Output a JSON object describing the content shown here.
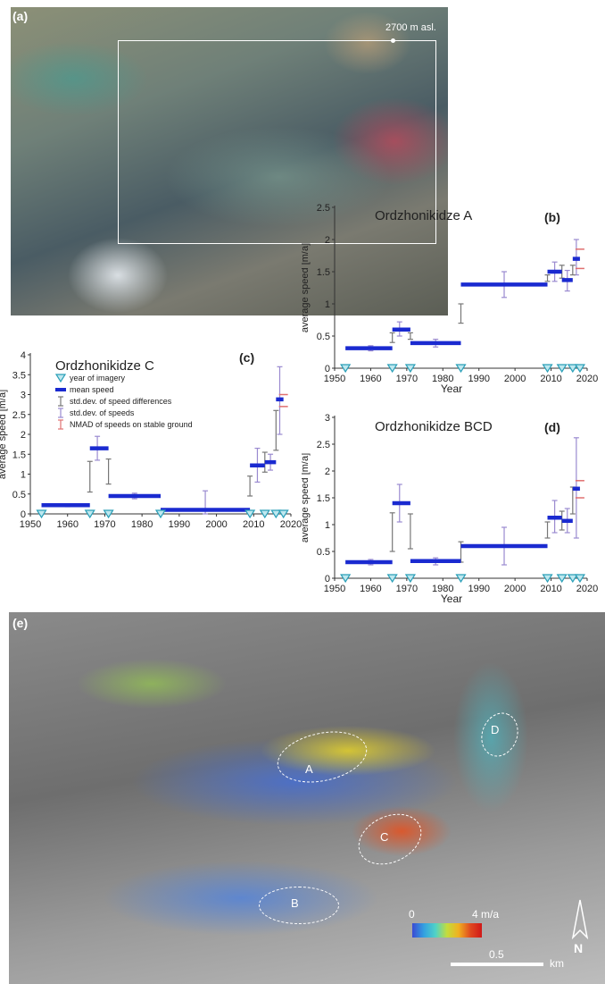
{
  "panel_a": {
    "label": "(a)",
    "altitude": "2700 m asl."
  },
  "panel_e": {
    "label": "(e)",
    "regions": [
      "A",
      "B",
      "C",
      "D"
    ],
    "colorbar": {
      "min": "0",
      "max": "4 m/a"
    },
    "scale": {
      "value": "0.5",
      "unit": "km"
    },
    "north": "N"
  },
  "chart_data": [
    {
      "id": "b",
      "panel": "(b)",
      "type": "line",
      "title": "Ordzhonikidze A",
      "xlabel": "Year",
      "ylabel": "average speed [m/a]",
      "xlim": [
        1950,
        2020
      ],
      "ylim": [
        0,
        2.5
      ],
      "xticks": [
        1950,
        1960,
        1970,
        1980,
        1990,
        2000,
        2010,
        2020
      ],
      "yticks": [
        "0",
        "0.5",
        "1",
        "1.5",
        "2",
        "2.5"
      ],
      "imagery_years": [
        1953,
        1966,
        1971,
        1985,
        2009,
        2013,
        2016,
        2018
      ],
      "mean_speed": [
        {
          "x0": 1953,
          "x1": 1966,
          "v": 0.31
        },
        {
          "x0": 1966,
          "x1": 1971,
          "v": 0.6
        },
        {
          "x0": 1971,
          "x1": 1985,
          "v": 0.39
        },
        {
          "x0": 1985,
          "x1": 2009,
          "v": 1.3
        },
        {
          "x0": 2009,
          "x1": 2013,
          "v": 1.5
        },
        {
          "x0": 2013,
          "x1": 2016,
          "v": 1.37
        },
        {
          "x0": 2016,
          "x1": 2018,
          "v": 1.7
        }
      ],
      "std_diff": [
        {
          "x": 1966,
          "lo": 0.4,
          "hi": 0.55
        },
        {
          "x": 1971,
          "lo": 0.45,
          "hi": 0.55
        },
        {
          "x": 1985,
          "lo": 0.7,
          "hi": 1.0
        },
        {
          "x": 2009,
          "lo": 1.35,
          "hi": 1.45
        },
        {
          "x": 2013,
          "lo": 1.4,
          "hi": 1.6
        },
        {
          "x": 2016,
          "lo": 1.45,
          "hi": 1.6
        }
      ],
      "std_speed": [
        {
          "x": 1960,
          "lo": 0.27,
          "hi": 0.35
        },
        {
          "x": 1968,
          "lo": 0.5,
          "hi": 0.72
        },
        {
          "x": 1978,
          "lo": 0.33,
          "hi": 0.45
        },
        {
          "x": 1997,
          "lo": 1.1,
          "hi": 1.5
        },
        {
          "x": 2011,
          "lo": 1.35,
          "hi": 1.65
        },
        {
          "x": 2014.5,
          "lo": 1.2,
          "hi": 1.52
        },
        {
          "x": 2017,
          "lo": 1.45,
          "hi": 2.0
        }
      ],
      "nmad": [
        {
          "x": 2018,
          "v": 1.55
        },
        {
          "x": 2018,
          "v": 1.85
        }
      ]
    },
    {
      "id": "c",
      "panel": "(c)",
      "type": "line",
      "title": "Ordzhonikidze C",
      "xlabel": "Year",
      "ylabel": "average speed [m/a]",
      "xlim": [
        1950,
        2020
      ],
      "ylim": [
        0,
        4
      ],
      "xticks": [
        1950,
        1960,
        1970,
        1980,
        1990,
        2000,
        2010,
        2020
      ],
      "yticks": [
        "0",
        "0.5",
        "1",
        "1.5",
        "2",
        "2.5",
        "3",
        "3.5",
        "4"
      ],
      "imagery_years": [
        1953,
        1966,
        1971,
        1985,
        2009,
        2013,
        2016,
        2018
      ],
      "mean_speed": [
        {
          "x0": 1953,
          "x1": 1966,
          "v": 0.22
        },
        {
          "x0": 1966,
          "x1": 1971,
          "v": 1.65
        },
        {
          "x0": 1971,
          "x1": 1985,
          "v": 0.45
        },
        {
          "x0": 1985,
          "x1": 2009,
          "v": 0.1
        },
        {
          "x0": 2009,
          "x1": 2013,
          "v": 1.22
        },
        {
          "x0": 2013,
          "x1": 2016,
          "v": 1.3
        },
        {
          "x0": 2016,
          "x1": 2018,
          "v": 2.88
        }
      ],
      "std_diff": [
        {
          "x": 1966,
          "lo": 0.55,
          "hi": 1.32
        },
        {
          "x": 1971,
          "lo": 0.75,
          "hi": 1.38
        },
        {
          "x": 2009,
          "lo": 0.45,
          "hi": 0.95
        },
        {
          "x": 2013,
          "lo": 1.05,
          "hi": 1.55
        },
        {
          "x": 2016,
          "lo": 1.6,
          "hi": 2.6
        }
      ],
      "std_speed": [
        {
          "x": 1960,
          "lo": 0.18,
          "hi": 0.25
        },
        {
          "x": 1968,
          "lo": 1.35,
          "hi": 1.95
        },
        {
          "x": 1978,
          "lo": 0.38,
          "hi": 0.52
        },
        {
          "x": 1997,
          "lo": 0.0,
          "hi": 0.58
        },
        {
          "x": 2011,
          "lo": 0.8,
          "hi": 1.65
        },
        {
          "x": 2014.5,
          "lo": 1.1,
          "hi": 1.5
        },
        {
          "x": 2017,
          "lo": 2.0,
          "hi": 3.7
        }
      ],
      "nmad": [
        {
          "x": 2018,
          "v": 2.7
        },
        {
          "x": 2018,
          "v": 3.0
        }
      ],
      "legend": [
        {
          "symbol": "triangle",
          "label": "year of imagery"
        },
        {
          "symbol": "bar",
          "label": "mean speed"
        },
        {
          "symbol": "gray-err",
          "label": "std.dev. of speed differences"
        },
        {
          "symbol": "purple-err",
          "label": "std.dev. of speeds"
        },
        {
          "symbol": "red-err",
          "label": "NMAD of speeds on stable ground"
        }
      ]
    },
    {
      "id": "d",
      "panel": "(d)",
      "type": "line",
      "title": "Ordzhonikidze BCD",
      "xlabel": "Year",
      "ylabel": "average speed [m/a]",
      "xlim": [
        1950,
        2020
      ],
      "ylim": [
        0,
        3
      ],
      "xticks": [
        1950,
        1960,
        1970,
        1980,
        1990,
        2000,
        2010,
        2020
      ],
      "yticks": [
        "0",
        "0.5",
        "1",
        "1.5",
        "2",
        "2.5",
        "3"
      ],
      "imagery_years": [
        1953,
        1966,
        1971,
        1985,
        2009,
        2013,
        2016,
        2018
      ],
      "mean_speed": [
        {
          "x0": 1953,
          "x1": 1966,
          "v": 0.3
        },
        {
          "x0": 1966,
          "x1": 1971,
          "v": 1.4
        },
        {
          "x0": 1971,
          "x1": 1985,
          "v": 0.32
        },
        {
          "x0": 1985,
          "x1": 2009,
          "v": 0.6
        },
        {
          "x0": 2009,
          "x1": 2013,
          "v": 1.13
        },
        {
          "x0": 2013,
          "x1": 2016,
          "v": 1.07
        },
        {
          "x0": 2016,
          "x1": 2018,
          "v": 1.67
        }
      ],
      "std_diff": [
        {
          "x": 1966,
          "lo": 0.5,
          "hi": 1.22
        },
        {
          "x": 1971,
          "lo": 0.55,
          "hi": 1.2
        },
        {
          "x": 1985,
          "lo": 0.3,
          "hi": 0.68
        },
        {
          "x": 2009,
          "lo": 0.75,
          "hi": 1.05
        },
        {
          "x": 2013,
          "lo": 0.9,
          "hi": 1.25
        },
        {
          "x": 2016,
          "lo": 1.2,
          "hi": 1.7
        }
      ],
      "std_speed": [
        {
          "x": 1960,
          "lo": 0.25,
          "hi": 0.35
        },
        {
          "x": 1968,
          "lo": 1.05,
          "hi": 1.75
        },
        {
          "x": 1978,
          "lo": 0.25,
          "hi": 0.38
        },
        {
          "x": 1997,
          "lo": 0.25,
          "hi": 0.95
        },
        {
          "x": 2011,
          "lo": 0.85,
          "hi": 1.45
        },
        {
          "x": 2014.5,
          "lo": 0.85,
          "hi": 1.3
        },
        {
          "x": 2017,
          "lo": 0.75,
          "hi": 2.62
        }
      ],
      "nmad": [
        {
          "x": 2018,
          "v": 1.5
        },
        {
          "x": 2018,
          "v": 1.82
        }
      ]
    }
  ]
}
